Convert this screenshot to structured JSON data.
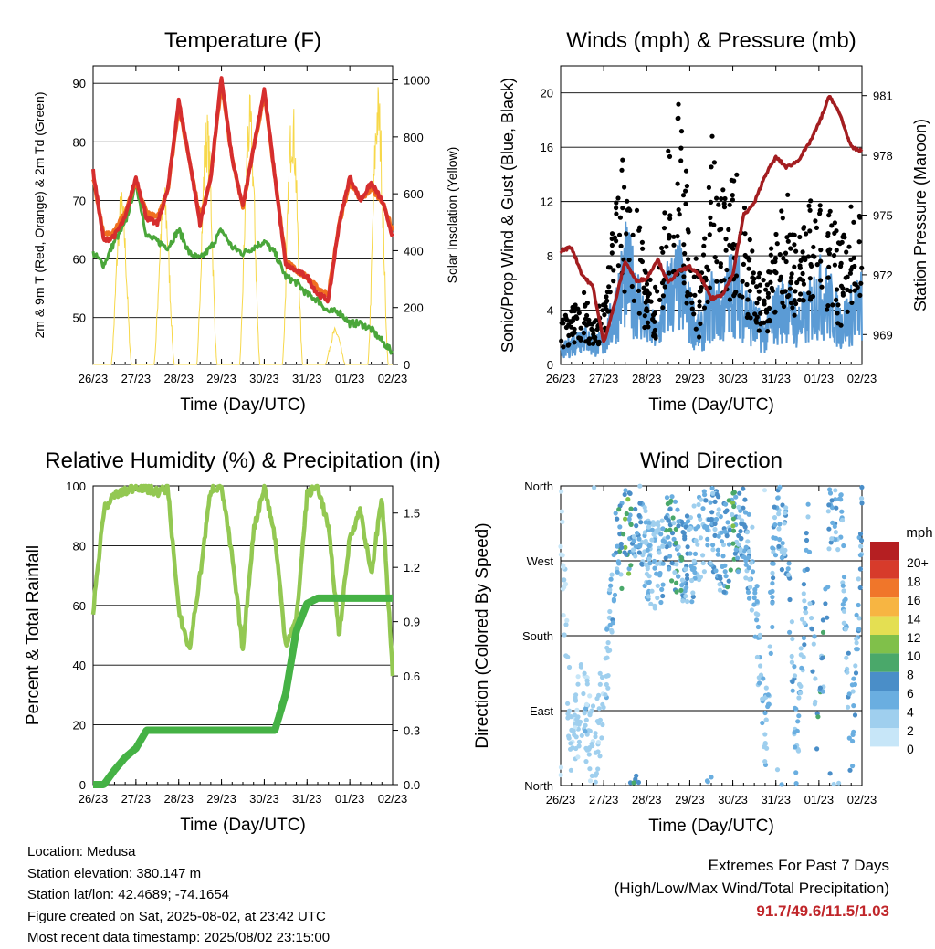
{
  "x_ticks": [
    "26/23",
    "27/23",
    "28/23",
    "29/23",
    "30/23",
    "31/23",
    "01/23",
    "02/23"
  ],
  "panels": {
    "temperature": {
      "title": "Temperature (F)",
      "xlabel": "Time (Day/UTC)",
      "ylabel_left": "2m & 9m T (Red, Orange) & 2m Td (Green)",
      "ylabel_right": "Solar Insolation (Yellow)",
      "left_ticks": [
        "50",
        "60",
        "70",
        "80",
        "90"
      ],
      "right_ticks": [
        "0",
        "200",
        "400",
        "600",
        "800",
        "1000"
      ]
    },
    "winds": {
      "title": "Winds (mph) & Pressure (mb)",
      "xlabel": "Time (Day/UTC)",
      "ylabel_left": "Sonic/Prop Wind & Gust (Blue, Black)",
      "ylabel_right": "Station Pressure (Maroon)",
      "left_ticks": [
        "0",
        "4",
        "8",
        "12",
        "16",
        "20"
      ],
      "right_ticks": [
        "969",
        "972",
        "975",
        "978",
        "981"
      ]
    },
    "humidity": {
      "title": "Relative Humidity (%) & Precipitation (in)",
      "xlabel": "Time (Day/UTC)",
      "ylabel_left": "Percent & Total Rainfall",
      "left_ticks": [
        "0",
        "20",
        "40",
        "60",
        "80",
        "100"
      ],
      "right_ticks": [
        "0.0",
        "0.3",
        "0.6",
        "0.9",
        "1.2",
        "1.5"
      ]
    },
    "direction": {
      "title": "Wind Direction",
      "xlabel": "Time (Day/UTC)",
      "ylabel_left": "Direction (Colored By Speed)",
      "left_ticks": [
        "North",
        "East",
        "South",
        "West",
        "North"
      ],
      "colorbar_title": "mph",
      "colorbar_labels": [
        "20+",
        "18",
        "16",
        "14",
        "12",
        "10",
        "8",
        "6",
        "4",
        "2",
        "0"
      ]
    }
  },
  "chart_data": [
    {
      "type": "line",
      "title": "Temperature (F)",
      "xlabel": "Time (Day/UTC)",
      "ylabel": "2m & 9m T (Red, Orange) & 2m Td (Green)",
      "y2label": "Solar Insolation (Yellow)",
      "ylim": [
        42,
        93
      ],
      "y2lim": [
        0,
        1050
      ],
      "x": [
        0,
        0.25,
        0.5,
        0.75,
        1,
        1.25,
        1.5,
        1.75,
        2,
        2.25,
        2.5,
        2.75,
        3,
        3.25,
        3.5,
        3.75,
        4,
        4.25,
        4.5,
        4.75,
        5,
        5.25,
        5.5,
        5.75,
        6,
        6.25,
        6.5,
        6.75,
        7
      ],
      "series": [
        {
          "name": "2m T",
          "color": "#d62e2e",
          "values": [
            75,
            63,
            64,
            67,
            74,
            67,
            66,
            72,
            87,
            77,
            66,
            74,
            91,
            77,
            69,
            79,
            89,
            74,
            59,
            58,
            57,
            54,
            53,
            66,
            74,
            70,
            73,
            70,
            64
          ]
        },
        {
          "name": "9m T",
          "color": "#f07020",
          "values": [
            74,
            64,
            65,
            68,
            73,
            68,
            67,
            72,
            86,
            77,
            67,
            74,
            90,
            77,
            69,
            79,
            88,
            74,
            60,
            58,
            57,
            55,
            54,
            66,
            73,
            70,
            72,
            70,
            65
          ]
        },
        {
          "name": "2m Td",
          "color": "#4aa63a",
          "values": [
            61,
            59,
            63,
            66,
            73,
            64,
            63,
            62,
            65,
            61,
            60,
            62,
            65,
            62,
            61,
            62,
            63,
            61,
            57,
            56,
            54,
            53,
            51,
            51,
            49,
            49,
            48,
            46,
            44
          ]
        },
        {
          "name": "Solar Insolation",
          "color": "#f7d84a",
          "axis": "right",
          "daily_peaks": [
            620,
            640,
            900,
            950,
            940,
            130,
            1000,
            900
          ]
        }
      ]
    },
    {
      "type": "scatter",
      "title": "Winds (mph) & Pressure (mb)",
      "xlabel": "Time (Day/UTC)",
      "ylabel": "Sonic/Prop Wind & Gust (Blue, Black)",
      "y2label": "Station Pressure (Maroon)",
      "ylim": [
        0,
        22
      ],
      "y2lim": [
        967.5,
        982.5
      ],
      "x": [
        0,
        0.25,
        0.5,
        0.75,
        1,
        1.25,
        1.5,
        1.75,
        2,
        2.25,
        2.5,
        2.75,
        3,
        3.25,
        3.5,
        3.75,
        4,
        4.25,
        4.5,
        4.75,
        5,
        5.25,
        5.5,
        5.75,
        6,
        6.25,
        6.5,
        6.75,
        7
      ],
      "series": [
        {
          "name": "Wind",
          "color": "#5b9bd5",
          "values": [
            1,
            2,
            3,
            2,
            2,
            5,
            9,
            7,
            4,
            3,
            7,
            8,
            5,
            3,
            6,
            5,
            8,
            6,
            4,
            3,
            5,
            6,
            4,
            5,
            7,
            6,
            4,
            5,
            6
          ]
        },
        {
          "name": "Gust",
          "color": "#000000",
          "values": [
            3,
            4,
            5,
            4,
            4,
            11,
            15,
            12,
            6,
            5,
            15,
            19,
            10,
            5,
            16,
            12,
            14,
            11,
            7,
            6,
            10,
            12,
            8,
            11,
            13,
            11,
            8,
            11,
            12
          ]
        },
        {
          "name": "Station Pressure",
          "color": "#a31d20",
          "axis": "right",
          "values": [
            973.2,
            973.4,
            972,
            971.4,
            968.6,
            970.5,
            972.7,
            971.7,
            971.8,
            972.8,
            971.6,
            972.2,
            972.4,
            971.9,
            970.8,
            971,
            972,
            975,
            975.6,
            977,
            977.9,
            977.4,
            977.7,
            978.5,
            979.6,
            981,
            980,
            978.4,
            978.2
          ]
        }
      ]
    },
    {
      "type": "line",
      "title": "Relative Humidity (%) & Precipitation (in)",
      "xlabel": "Time (Day/UTC)",
      "ylabel": "Percent & Total Rainfall",
      "ylim": [
        0,
        100
      ],
      "y2lim": [
        0,
        1.65
      ],
      "x": [
        0,
        0.25,
        0.5,
        0.75,
        1,
        1.25,
        1.5,
        1.75,
        2,
        2.25,
        2.5,
        2.75,
        3,
        3.25,
        3.5,
        3.75,
        4,
        4.25,
        4.5,
        4.75,
        5,
        5.25,
        5.5,
        5.75,
        6,
        6.25,
        6.5,
        6.75,
        7
      ],
      "series": [
        {
          "name": "Relative Humidity",
          "color": "#93c852",
          "values": [
            58,
            92,
            97,
            98,
            100,
            99,
            98,
            99,
            58,
            45,
            70,
            99,
            100,
            76,
            45,
            85,
            100,
            83,
            47,
            55,
            97,
            100,
            86,
            50,
            83,
            92,
            70,
            97,
            37
          ]
        },
        {
          "name": "Total Precipitation",
          "color": "#45b245",
          "axis": "right",
          "values": [
            0,
            0,
            0.08,
            0.15,
            0.2,
            0.3,
            0.3,
            0.3,
            0.3,
            0.3,
            0.3,
            0.3,
            0.3,
            0.3,
            0.3,
            0.3,
            0.3,
            0.3,
            0.5,
            0.85,
            1.0,
            1.03,
            1.03,
            1.03,
            1.03,
            1.03,
            1.03,
            1.03,
            1.03
          ]
        }
      ]
    },
    {
      "type": "scatter",
      "title": "Wind Direction",
      "xlabel": "Time (Day/UTC)",
      "ylabel": "Direction (Colored By Speed)",
      "ylim": [
        0,
        360
      ],
      "color_scale_mph": [
        0,
        2,
        4,
        6,
        8,
        10,
        12,
        14,
        16,
        18,
        20
      ],
      "x": [
        0,
        0.25,
        0.5,
        0.75,
        1,
        1.25,
        1.5,
        1.75,
        2,
        2.25,
        2.5,
        2.75,
        3,
        3.25,
        3.5,
        3.75,
        4,
        4.25,
        4.5,
        4.75,
        5,
        5.25,
        5.5,
        5.75,
        6,
        6.25,
        6.5,
        6.75,
        7
      ],
      "series": [
        {
          "name": "Wind Direction",
          "values": [
            340,
            30,
            110,
            40,
            100,
            270,
            300,
            320,
            280,
            260,
            300,
            280,
            270,
            300,
            320,
            280,
            300,
            310,
            250,
            40,
            330,
            300,
            30,
            300,
            40,
            320,
            330,
            40,
            310
          ]
        }
      ]
    }
  ],
  "footer": {
    "location": "Location: Medusa",
    "elevation": "Station elevation: 380.147 m",
    "latlon": "Station lat/lon: 42.4689; -74.1654",
    "created": "Figure created on Sat, 2025-08-02, at 23:42 UTC",
    "recent": "Most recent data timestamp: 2025/08/02 23:15:00"
  },
  "extremes": {
    "title": "Extremes For Past 7 Days",
    "subtitle": "(High/Low/Max Wind/Total Precipitation)",
    "values": "91.7/49.6/11.5/1.03"
  }
}
